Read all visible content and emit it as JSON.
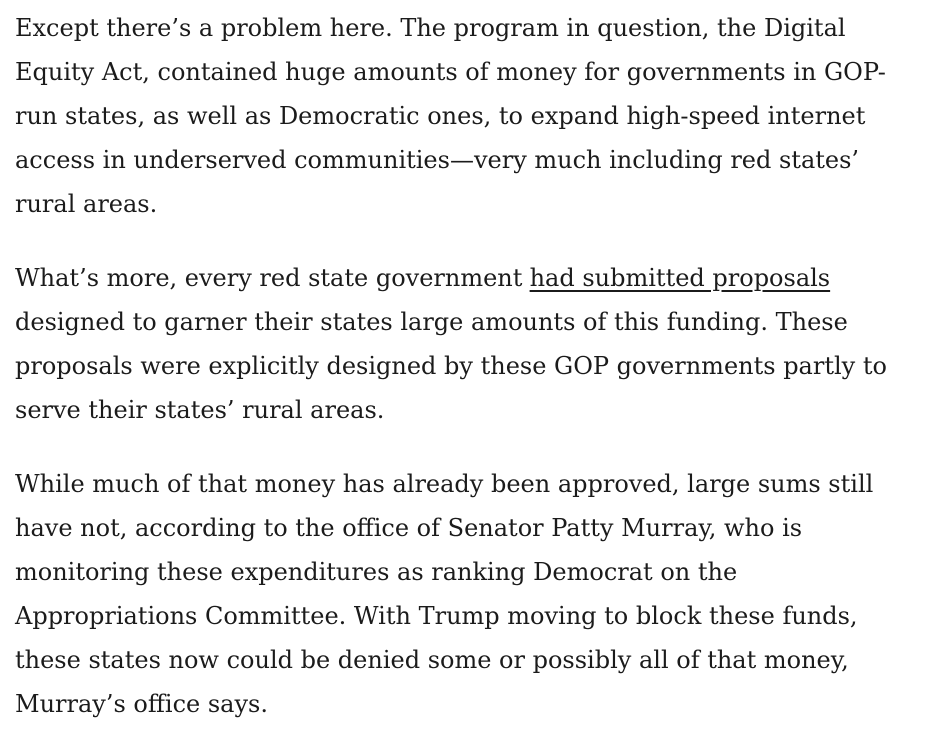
{
  "paragraphs": [
    {
      "lines": [
        "Except there’s a problem here. The program in question, the Digital",
        "Equity Act, contained huge amounts of money for governments in GOP-",
        "run states, as well as Democratic ones, to expand high-speed internet",
        "access in underserved communities—very much including red states’",
        "rural areas."
      ]
    },
    {
      "lines": [
        {
          "text": "What’s more, every red state government",
          "link": "had submitted proposals"
        },
        "designed to garner their states large amounts of this funding. These",
        "proposals were explicitly designed by these GOP governments partly to",
        "serve their states’ rural areas."
      ]
    },
    {
      "lines": [
        "While much of that money has already been approved, large sums still",
        "have not, according to the office of Senator Patty Murray, who is",
        "monitoring these expenditures as ranking Democrat on the",
        "Appropriations Committee. With Trump moving to block these funds,",
        "these states now could be denied some or possibly all of that money,",
        "Murray’s office says."
      ]
    }
  ]
}
